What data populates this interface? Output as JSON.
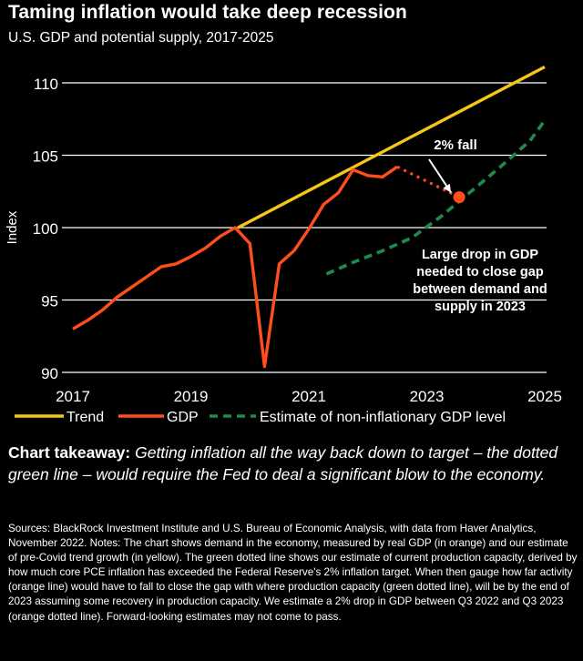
{
  "title": "Taming inflation would take deep recession",
  "subtitle": "U.S. GDP and potential supply, 2017-2025",
  "chart_data": {
    "type": "line",
    "ylabel": "Index",
    "xlim": [
      2017,
      2025
    ],
    "ylim": [
      90,
      111
    ],
    "x_ticks": [
      "2017",
      "2019",
      "2021",
      "2023",
      "2025"
    ],
    "y_ticks": [
      "90",
      "95",
      "100",
      "105",
      "110"
    ],
    "grid": "horizontal",
    "legend_position": "bottom",
    "colors": {
      "trend": "#f5c518",
      "gdp": "#ff4e1b",
      "estimate": "#1f8a4c"
    },
    "series": [
      {
        "name": "Trend",
        "style": "solid",
        "x": [
          2019.8,
          2025
        ],
        "y": [
          100.0,
          111.1
        ]
      },
      {
        "name": "GDP",
        "style": "solid",
        "x": [
          2017.0,
          2017.25,
          2017.5,
          2017.75,
          2018.0,
          2018.25,
          2018.5,
          2018.75,
          2019.0,
          2019.25,
          2019.5,
          2019.75,
          2020.0,
          2020.25,
          2020.5,
          2020.75,
          2021.0,
          2021.25,
          2021.5,
          2021.75,
          2022.0,
          2022.25,
          2022.5
        ],
        "y": [
          93.0,
          93.6,
          94.3,
          95.2,
          95.9,
          96.6,
          97.3,
          97.5,
          98.0,
          98.6,
          99.4,
          100.0,
          98.9,
          90.4,
          97.5,
          98.4,
          99.9,
          101.6,
          102.4,
          104.0,
          103.6,
          103.5,
          104.2
        ]
      },
      {
        "name": "Estimate of non-inflationary GDP level",
        "style": "dashed",
        "x": [
          2021.3,
          2021.75,
          2022.25,
          2022.75,
          2023.25,
          2023.75,
          2024.25,
          2024.75,
          2025.0
        ],
        "y": [
          96.8,
          97.6,
          98.4,
          99.3,
          100.8,
          102.5,
          104.2,
          106.0,
          107.4
        ]
      },
      {
        "name": "Projected GDP",
        "style": "dotted",
        "x": [
          2022.5,
          2023.55
        ],
        "y": [
          104.2,
          102.1
        ]
      }
    ],
    "annotations": {
      "fall": "2% fall",
      "drop": [
        "Large drop in GDP",
        "needed to close gap",
        "between demand and",
        "supply in 2023"
      ]
    },
    "legend": [
      "Trend",
      "GDP",
      "Estimate of non-inflationary GDP level"
    ]
  },
  "takeaway": {
    "lead": "Chart takeaway:",
    "body": " Getting inflation all the way back down to target – the dotted green line – would require the Fed to deal a significant blow to the economy."
  },
  "sources": "Sources: BlackRock Investment Institute and U.S. Bureau of Economic Analysis, with data from Haver Analytics, November 2022. Notes: The chart shows demand in the economy, measured by real GDP (in orange) and our estimate of pre-Covid trend growth (in yellow). The green dotted line shows our estimate of current production capacity, derived by how much core PCE inflation has exceeded the Federal Reserve's 2% inflation target. When then gauge how far activity (orange line) would have to fall to close the gap with where production capacity (green dotted line), will be by the end of 2023 assuming some recovery in production capacity. We estimate a 2% drop in GDP between Q3 2022 and Q3 2023 (orange dotted line). Forward-looking estimates may not come to pass."
}
